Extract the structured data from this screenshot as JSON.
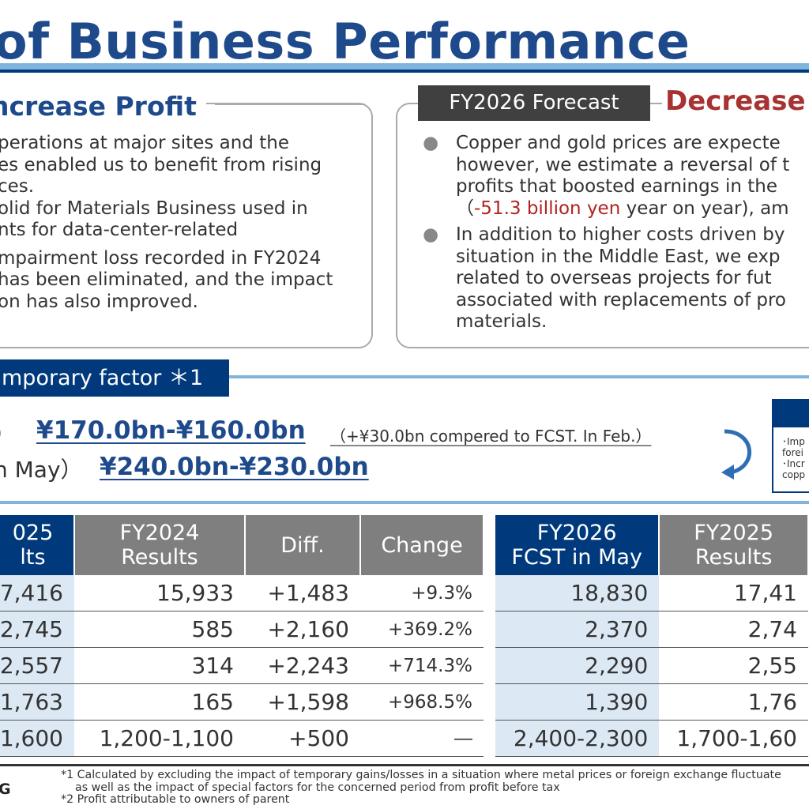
{
  "header": {
    "title": "of Business Performance"
  },
  "left_panel": {
    "heading": "ncrease Profit",
    "lines": [
      "perations at major sites and the",
      "es enabled us to benefit from rising",
      "ces.",
      "olid for Materials Business used in",
      "nts for data-center-related",
      "",
      "mpairment loss recorded in FY2024",
      "has been eliminated, and the impact",
      "on has also improved."
    ]
  },
  "right_panel": {
    "tag": "FY2026 Forecast",
    "heading": "Decrease",
    "bullet1_lines": [
      "Copper and gold prices are expecte",
      "however, we estimate a reversal of t",
      "profits that boosted earnings in the"
    ],
    "bullet1_red": "-51.3 billion yen",
    "bullet1_open": "（",
    "bullet1_tail": " year on year), am",
    "bullet2_lines": [
      "In addition to higher costs driven by",
      "situation in the Middle East, we exp",
      "related to overseas projects for fut",
      "associated with replacements of pro",
      "materials."
    ]
  },
  "temporary": {
    "tag": "mporary factor ＊1",
    "line1_prefix": "）",
    "line1_value": "¥170.0bn-¥160.0bn",
    "line1_note": "（+¥30.0bn compered to FCST. In Feb.）",
    "line2_prefix": "n May）",
    "line2_value": "¥240.0bn-¥230.0bn"
  },
  "side_box": {
    "lines": [
      "･Imp",
      "forei",
      "･Incr",
      "copp"
    ]
  },
  "table_left": {
    "headers": [
      [
        "025",
        "lts"
      ],
      [
        "FY2024",
        "Results"
      ],
      [
        "Diff."
      ],
      [
        "Change"
      ]
    ],
    "rows": [
      [
        "7,416",
        "15,933",
        "+1,483",
        "+9.3%"
      ],
      [
        "2,745",
        "585",
        "+2,160",
        "+369.2%"
      ],
      [
        "2,557",
        "314",
        "+2,243",
        "+714.3%"
      ],
      [
        "1,763",
        "165",
        "+1,598",
        "+968.5%"
      ],
      [
        "1,600",
        "1,200-1,100",
        "+500",
        "―"
      ]
    ]
  },
  "table_right": {
    "headers": [
      [
        "FY2026",
        "FCST in May"
      ],
      [
        "FY2025",
        "Results"
      ]
    ],
    "rows": [
      [
        "18,830",
        "17,41"
      ],
      [
        "2,370",
        "2,74"
      ],
      [
        "2,290",
        "2,55"
      ],
      [
        "1,390",
        "1,76"
      ],
      [
        "2,400-2,300",
        "1,700-1,60"
      ]
    ]
  },
  "footer": {
    "logo_fragment": "G",
    "notes": [
      "*1 Calculated by excluding the impact of temporary gains/losses in a situation where metal prices or foreign exchange fluctuate",
      "    as well as the impact of special factors for the concerned period from profit before tax",
      "*2 Profit attributable to owners of parent"
    ]
  },
  "colors": {
    "navy": "#003a7d",
    "title_blue": "#1e4a8c",
    "light_blue_rule": "#7fb4dc",
    "header_gray": "#7f7f7f",
    "decrease_red": "#a83232",
    "cell_light_blue": "#dce9f5"
  }
}
